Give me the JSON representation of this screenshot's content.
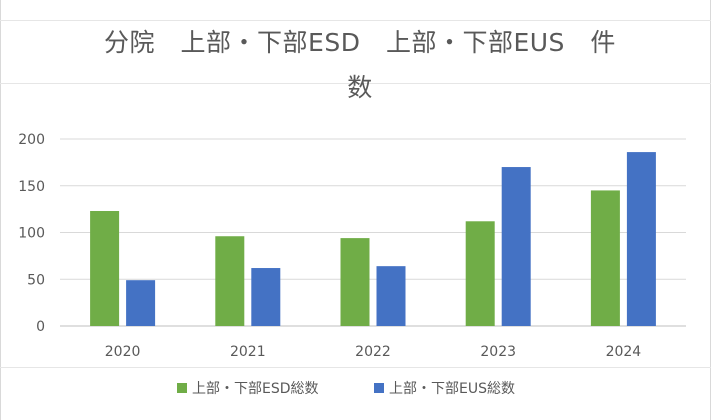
{
  "chart_data": {
    "type": "bar",
    "title_line1": "分院　上部・下部ESD　上部・下部EUS　件",
    "title_line2": "数",
    "categories": [
      "2020",
      "2021",
      "2022",
      "2023",
      "2024"
    ],
    "series": [
      {
        "name": "上部・下部ESD総数",
        "color": "#70ad47",
        "values": [
          123,
          96,
          94,
          112,
          145
        ]
      },
      {
        "name": "上部・下部EUS総数",
        "color": "#4472c4",
        "values": [
          49,
          62,
          64,
          170,
          186
        ]
      }
    ],
    "y_ticks": [
      "0",
      "50",
      "100",
      "150",
      "200"
    ],
    "ylim": [
      0,
      200
    ],
    "grid": true,
    "legend_position": "bottom"
  }
}
